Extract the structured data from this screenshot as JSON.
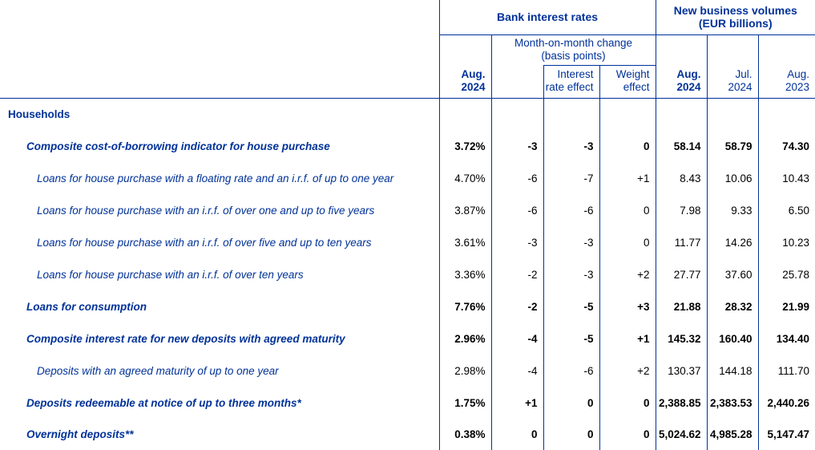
{
  "page": {
    "background": "#ffffff",
    "accent_blue": "#003299",
    "data_text_color": "#000000"
  },
  "header": {
    "bank_interest_rates": "Bank interest rates",
    "new_business_volumes": [
      "New business volumes",
      "(EUR billions)"
    ],
    "mom_change": [
      "Month-on-month change",
      "(basis points)"
    ]
  },
  "columns": {
    "rate_period": [
      "Aug.",
      "2024"
    ],
    "interest_rate_effect": [
      "Interest",
      "rate effect"
    ],
    "weight_effect": [
      "Weight",
      "effect"
    ],
    "volume_periods": [
      [
        "Aug.",
        "2024"
      ],
      [
        "Jul.",
        "2024"
      ],
      [
        "Aug.",
        "2023"
      ]
    ]
  },
  "rows": [
    {
      "label": "Households",
      "level": "section",
      "bold": true,
      "values": [
        "",
        "",
        "",
        "",
        "",
        "",
        ""
      ]
    },
    {
      "label": "Composite cost-of-borrowing indicator for house purchase",
      "level": "l1",
      "bold": true,
      "values": [
        "3.72%",
        "-3",
        "-3",
        "0",
        "58.14",
        "58.79",
        "74.30"
      ]
    },
    {
      "label": "Loans for house purchase with a floating rate and an i.r.f. of up to one year",
      "level": "l2",
      "bold": false,
      "values": [
        "4.70%",
        "-6",
        "-7",
        "+1",
        "8.43",
        "10.06",
        "10.43"
      ]
    },
    {
      "label": "Loans for house purchase with an i.r.f. of over one and up to five years",
      "level": "l2",
      "bold": false,
      "values": [
        "3.87%",
        "-6",
        "-6",
        "0",
        "7.98",
        "9.33",
        "6.50"
      ]
    },
    {
      "label": "Loans for house purchase with an i.r.f. of over five and up to ten years",
      "level": "l2",
      "bold": false,
      "values": [
        "3.61%",
        "-3",
        "-3",
        "0",
        "11.77",
        "14.26",
        "10.23"
      ]
    },
    {
      "label": "Loans for house purchase with an i.r.f. of over ten years",
      "level": "l2",
      "bold": false,
      "values": [
        "3.36%",
        "-2",
        "-3",
        "+2",
        "27.77",
        "37.60",
        "25.78"
      ]
    },
    {
      "label": "Loans for consumption",
      "level": "l1",
      "bold": true,
      "values": [
        "7.76%",
        "-2",
        "-5",
        "+3",
        "21.88",
        "28.32",
        "21.99"
      ]
    },
    {
      "label": "Composite interest rate for new deposits with agreed maturity",
      "level": "l1",
      "bold": true,
      "values": [
        "2.96%",
        "-4",
        "-5",
        "+1",
        "145.32",
        "160.40",
        "134.40"
      ]
    },
    {
      "label": "Deposits with an agreed maturity of up to one year",
      "level": "l2",
      "bold": false,
      "values": [
        "2.98%",
        "-4",
        "-6",
        "+2",
        "130.37",
        "144.18",
        "111.70"
      ]
    },
    {
      "label": "Deposits redeemable at notice of up to three months*",
      "level": "l1",
      "bold": true,
      "values": [
        "1.75%",
        "+1",
        "0",
        "0",
        "2,388.85",
        "2,383.53",
        "2,440.26"
      ]
    },
    {
      "label": "Overnight deposits**",
      "level": "l1",
      "bold": true,
      "values": [
        "0.38%",
        "0",
        "0",
        "0",
        "5,024.62",
        "4,985.28",
        "5,147.47"
      ]
    }
  ]
}
